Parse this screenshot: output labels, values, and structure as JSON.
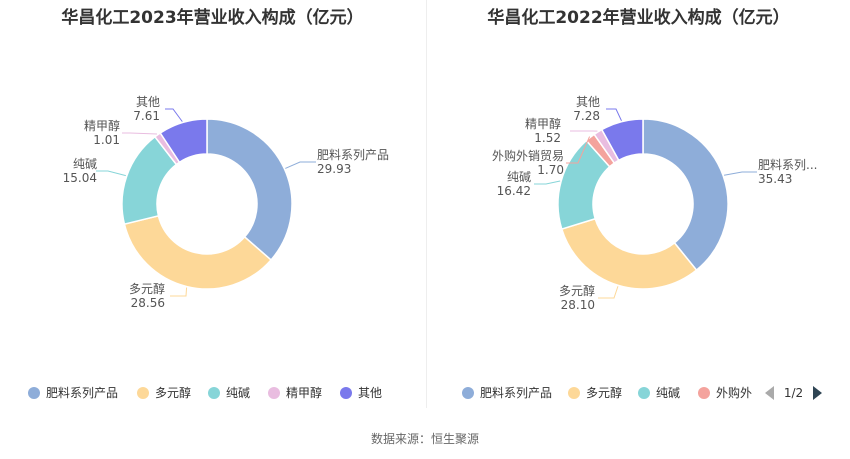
{
  "source": "数据来源：恒生聚源",
  "chart_data": [
    {
      "type": "pie",
      "donut": true,
      "title": "华昌化工2023年营业收入构成（亿元）",
      "slices": [
        {
          "label": "肥料系列产品",
          "value": 29.93,
          "color": "#8eadd9"
        },
        {
          "label": "多元醇",
          "value": 28.56,
          "color": "#fdd898"
        },
        {
          "label": "纯碱",
          "value": 15.04,
          "color": "#87d5d8"
        },
        {
          "label": "精甲醇",
          "value": 1.01,
          "color": "#e9bde0"
        },
        {
          "label": "其他",
          "value": 7.61,
          "color": "#7a79ec"
        }
      ],
      "legend": {
        "position": "bottom",
        "entries": [
          "肥料系列产品",
          "多元醇",
          "纯碱",
          "精甲醇",
          "其他"
        ]
      }
    },
    {
      "type": "pie",
      "donut": true,
      "title": "华昌化工2022年营业收入构成（亿元）",
      "slices": [
        {
          "label": "肥料系列产品",
          "display_label": "肥料系列...",
          "value": 35.43,
          "color": "#8eadd9"
        },
        {
          "label": "多元醇",
          "value": 28.1,
          "color": "#fdd898"
        },
        {
          "label": "纯碱",
          "value": 16.42,
          "color": "#87d5d8"
        },
        {
          "label": "外购外销贸易",
          "value": 1.7,
          "color": "#f4a39d"
        },
        {
          "label": "精甲醇",
          "value": 1.52,
          "color": "#e9bde0"
        },
        {
          "label": "其他",
          "value": 7.28,
          "color": "#7a79ec"
        }
      ],
      "legend": {
        "position": "bottom",
        "entries": [
          "肥料系列产品",
          "多元醇",
          "纯碱",
          "外购外"
        ],
        "page": "1/2"
      }
    }
  ]
}
